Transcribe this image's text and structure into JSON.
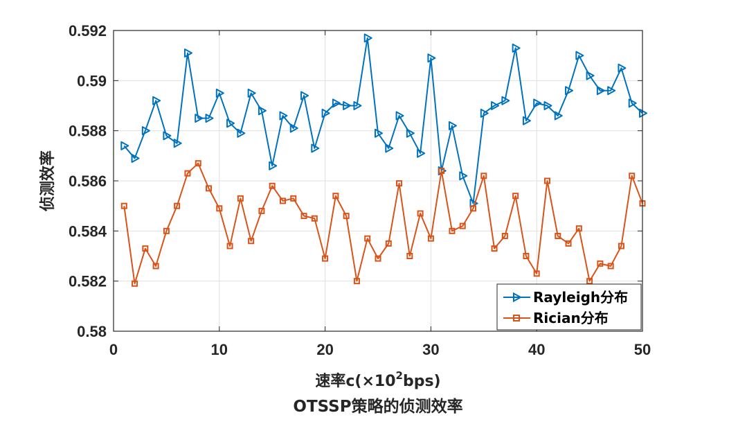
{
  "chart_data": {
    "type": "line",
    "title": "OTSSP策略的侦测效率",
    "xlabel_main": "速率c(×10",
    "xlabel_sup": "2",
    "xlabel_tail": "bps)",
    "ylabel": "侦测效率",
    "xlim": [
      0,
      50
    ],
    "ylim": [
      0.58,
      0.592
    ],
    "xticks": [
      0,
      10,
      20,
      30,
      40,
      50
    ],
    "xtick_labels": [
      "0",
      "10",
      "20",
      "30",
      "40",
      "50"
    ],
    "yticks": [
      0.58,
      0.582,
      0.584,
      0.586,
      0.588,
      0.59,
      0.592
    ],
    "ytick_labels": [
      "0.58",
      "0.582",
      "0.584",
      "0.586",
      "0.588",
      "0.59",
      "0.592"
    ],
    "grid": true,
    "legend_position": "bottom-right",
    "x": [
      1,
      2,
      3,
      4,
      5,
      6,
      7,
      8,
      9,
      10,
      11,
      12,
      13,
      14,
      15,
      16,
      17,
      18,
      19,
      20,
      21,
      22,
      23,
      24,
      25,
      26,
      27,
      28,
      29,
      30,
      31,
      32,
      33,
      34,
      35,
      36,
      37,
      38,
      39,
      40,
      41,
      42,
      43,
      44,
      45,
      46,
      47,
      48,
      49,
      50
    ],
    "series": [
      {
        "name": "Rayleigh分布",
        "color": "#0072BD",
        "marker": "triangle-right",
        "values": [
          0.5874,
          0.5869,
          0.588,
          0.5892,
          0.5878,
          0.5875,
          0.5911,
          0.5885,
          0.5885,
          0.5895,
          0.5883,
          0.5879,
          0.5895,
          0.5888,
          0.5866,
          0.5886,
          0.5881,
          0.5894,
          0.5873,
          0.5887,
          0.5891,
          0.589,
          0.589,
          0.5917,
          0.5879,
          0.5873,
          0.5886,
          0.5879,
          0.5871,
          0.5909,
          0.5864,
          0.5882,
          0.5862,
          0.5851,
          0.5887,
          0.589,
          0.5892,
          0.5913,
          0.5884,
          0.5891,
          0.589,
          0.5886,
          0.5896,
          0.591,
          0.5902,
          0.5896,
          0.5896,
          0.5905,
          0.5891,
          0.5887
        ]
      },
      {
        "name": "Rician分布",
        "color": "#D95319",
        "marker": "square",
        "values": [
          0.585,
          0.5819,
          0.5833,
          0.5826,
          0.584,
          0.585,
          0.5863,
          0.5867,
          0.5857,
          0.5849,
          0.5834,
          0.5853,
          0.5836,
          0.5848,
          0.5858,
          0.5852,
          0.5853,
          0.5846,
          0.5845,
          0.5829,
          0.5854,
          0.5846,
          0.582,
          0.5837,
          0.5829,
          0.5835,
          0.5859,
          0.583,
          0.5847,
          0.5837,
          0.5864,
          0.584,
          0.5842,
          0.5849,
          0.5862,
          0.5833,
          0.5838,
          0.5854,
          0.583,
          0.5823,
          0.586,
          0.5838,
          0.5835,
          0.5841,
          0.582,
          0.5827,
          0.5826,
          0.5834,
          0.5862,
          0.5851
        ]
      }
    ]
  }
}
